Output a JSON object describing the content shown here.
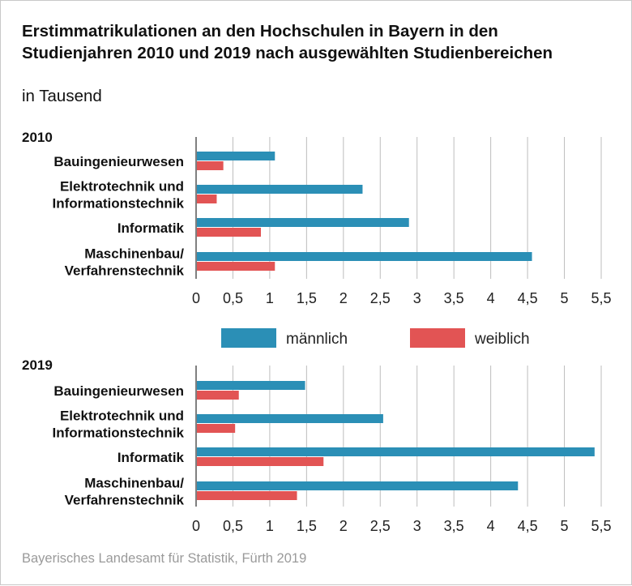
{
  "title": "Erstimmatrikulationen an den Hochschulen in Bayern in den Studienjahren 2010 und 2019 nach ausgewählten Studienbereichen",
  "subtitle": "in Tausend",
  "source": "Bayerisches Landesamt für Statistik, Fürth 2019",
  "colors": {
    "maennlich": "#2b8fb6",
    "weiblich": "#e25454",
    "grid": "#bdbdbd",
    "axis": "#555555"
  },
  "legend": [
    {
      "label": "männlich",
      "color": "#2b8fb6"
    },
    {
      "label": "weiblich",
      "color": "#e25454"
    }
  ],
  "chart_data": [
    {
      "type": "bar",
      "orientation": "horizontal",
      "panel_label": "2010",
      "categories": [
        [
          "Bauingenieurwesen"
        ],
        [
          "Elektrotechnik und",
          "Informationstechnik"
        ],
        [
          "Informatik"
        ],
        [
          "Maschinenbau/",
          "Verfahrenstechnik"
        ]
      ],
      "series": [
        {
          "name": "männlich",
          "values": [
            1.07,
            2.26,
            2.89,
            4.56
          ]
        },
        {
          "name": "weiblich",
          "values": [
            0.37,
            0.28,
            0.88,
            1.07
          ]
        }
      ],
      "xlim": [
        0,
        5.5
      ],
      "ticks": [
        "0",
        "0,5",
        "1",
        "1,5",
        "2",
        "2,5",
        "3",
        "3,5",
        "4",
        "4,5",
        "5",
        "5,5"
      ],
      "grid": true
    },
    {
      "type": "bar",
      "orientation": "horizontal",
      "panel_label": "2019",
      "categories": [
        [
          "Bauingenieurwesen"
        ],
        [
          "Elektrotechnik und",
          "Informationstechnik"
        ],
        [
          "Informatik"
        ],
        [
          "Maschinenbau/",
          "Verfahrenstechnik"
        ]
      ],
      "series": [
        {
          "name": "männlich",
          "values": [
            1.48,
            2.54,
            5.41,
            4.37
          ]
        },
        {
          "name": "weiblich",
          "values": [
            0.58,
            0.53,
            1.73,
            1.37
          ]
        }
      ],
      "xlim": [
        0,
        5.5
      ],
      "ticks": [
        "0",
        "0,5",
        "1",
        "1,5",
        "2",
        "2,5",
        "3",
        "3,5",
        "4",
        "4,5",
        "5",
        "5,5"
      ],
      "grid": true
    }
  ]
}
